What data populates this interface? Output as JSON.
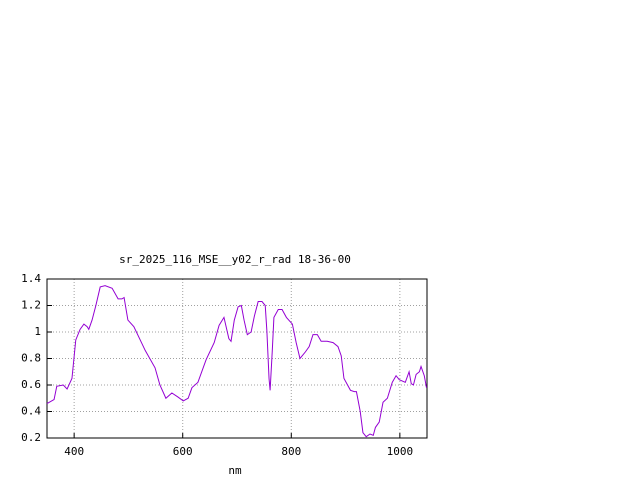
{
  "chart_data": {
    "type": "line",
    "title": "sr_2025_116_MSE__y02_r_rad 18-36-00",
    "x_label": "nm",
    "color": "#9400d3",
    "grid": true,
    "xlim": [
      350,
      1050
    ],
    "xticks": [
      400,
      600,
      800,
      1000
    ],
    "ylim": [
      0.2,
      1.4
    ],
    "yticks": [
      0.2,
      0.4,
      0.6,
      0.8,
      1,
      1.2,
      1.4
    ],
    "x": [
      350,
      363,
      368,
      380,
      387,
      396,
      403,
      411,
      418,
      424,
      427,
      433,
      440,
      448,
      457,
      470,
      481,
      488,
      492,
      499,
      510,
      531,
      549,
      558,
      569,
      580,
      591,
      601,
      610,
      617,
      628,
      643,
      658,
      667,
      676,
      685,
      689,
      695,
      702,
      708,
      713,
      719,
      726,
      732,
      739,
      746,
      752,
      755,
      759,
      761,
      765,
      768,
      776,
      783,
      791,
      802,
      809,
      816,
      826,
      833,
      840,
      848,
      855,
      866,
      877,
      886,
      892,
      897,
      909,
      916,
      920,
      927,
      932,
      938,
      945,
      951,
      955,
      962,
      969,
      977,
      986,
      993,
      999,
      1010,
      1017,
      1021,
      1025,
      1030,
      1036,
      1039,
      1045,
      1049
    ],
    "values": [
      0.46,
      0.49,
      0.59,
      0.6,
      0.57,
      0.65,
      0.94,
      1.02,
      1.06,
      1.04,
      1.02,
      1.09,
      1.2,
      1.34,
      1.35,
      1.33,
      1.25,
      1.25,
      1.26,
      1.09,
      1.04,
      0.86,
      0.73,
      0.6,
      0.5,
      0.54,
      0.51,
      0.48,
      0.5,
      0.58,
      0.62,
      0.79,
      0.92,
      1.05,
      1.11,
      0.95,
      0.93,
      1.09,
      1.19,
      1.2,
      1.09,
      0.98,
      1.0,
      1.12,
      1.23,
      1.23,
      1.2,
      1.01,
      0.65,
      0.56,
      0.86,
      1.11,
      1.17,
      1.17,
      1.11,
      1.06,
      0.92,
      0.8,
      0.85,
      0.89,
      0.98,
      0.98,
      0.93,
      0.93,
      0.92,
      0.89,
      0.82,
      0.65,
      0.56,
      0.55,
      0.55,
      0.4,
      0.24,
      0.21,
      0.23,
      0.22,
      0.28,
      0.32,
      0.47,
      0.5,
      0.62,
      0.67,
      0.64,
      0.62,
      0.7,
      0.61,
      0.6,
      0.68,
      0.7,
      0.74,
      0.67,
      0.58
    ]
  }
}
